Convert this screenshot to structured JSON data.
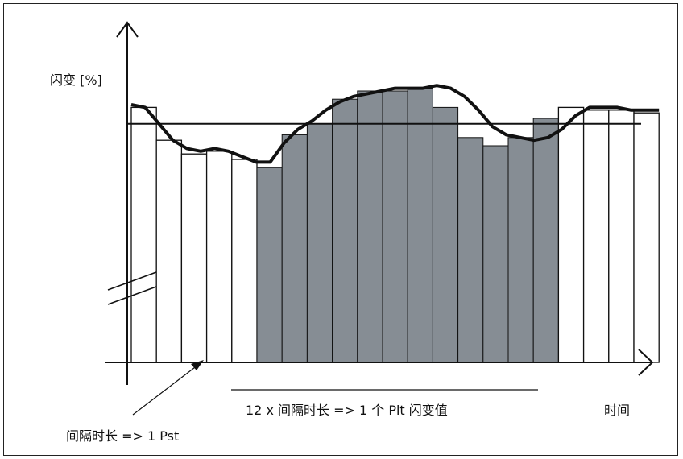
{
  "labels": {
    "y_axis": "闪变 [%]",
    "x_axis": "时间",
    "interval_note": "间隔时长 => 1 Pst",
    "plt_note": "12 x 间隔时长 => 1 个 Plt 闪变值"
  },
  "colors": {
    "line": "#111111",
    "shaded_bar": "#868d94",
    "open_bar": "#ffffff"
  },
  "chart_data": {
    "type": "bar",
    "title": "",
    "xlabel": "时间",
    "ylabel": "闪变 [%]",
    "y_axis_break": true,
    "bars": [
      {
        "level": 0.99,
        "shaded": false
      },
      {
        "level": 0.87,
        "shaded": false
      },
      {
        "level": 0.82,
        "shaded": false
      },
      {
        "level": 0.83,
        "shaded": false
      },
      {
        "level": 0.8,
        "shaded": false
      },
      {
        "level": 0.77,
        "shaded": true
      },
      {
        "level": 0.89,
        "shaded": true
      },
      {
        "level": 0.93,
        "shaded": true
      },
      {
        "level": 1.02,
        "shaded": true
      },
      {
        "level": 1.05,
        "shaded": true
      },
      {
        "level": 1.05,
        "shaded": true
      },
      {
        "level": 1.06,
        "shaded": true
      },
      {
        "level": 0.99,
        "shaded": true
      },
      {
        "level": 0.88,
        "shaded": true
      },
      {
        "level": 0.85,
        "shaded": true
      },
      {
        "level": 0.88,
        "shaded": true
      },
      {
        "level": 0.95,
        "shaded": true
      },
      {
        "level": 0.99,
        "shaded": false
      },
      {
        "level": 0.98,
        "shaded": false
      },
      {
        "level": 0.98,
        "shaded": false
      },
      {
        "level": 0.97,
        "shaded": false
      }
    ],
    "reference_level": 0.93,
    "curve": [
      1.0,
      0.99,
      0.93,
      0.87,
      0.84,
      0.83,
      0.84,
      0.83,
      0.81,
      0.79,
      0.79,
      0.86,
      0.91,
      0.94,
      0.98,
      1.01,
      1.03,
      1.04,
      1.05,
      1.06,
      1.06,
      1.06,
      1.07,
      1.06,
      1.03,
      0.98,
      0.92,
      0.89,
      0.88,
      0.87,
      0.88,
      0.91,
      0.96,
      0.99,
      0.99,
      0.99,
      0.98,
      0.98,
      0.98
    ]
  }
}
